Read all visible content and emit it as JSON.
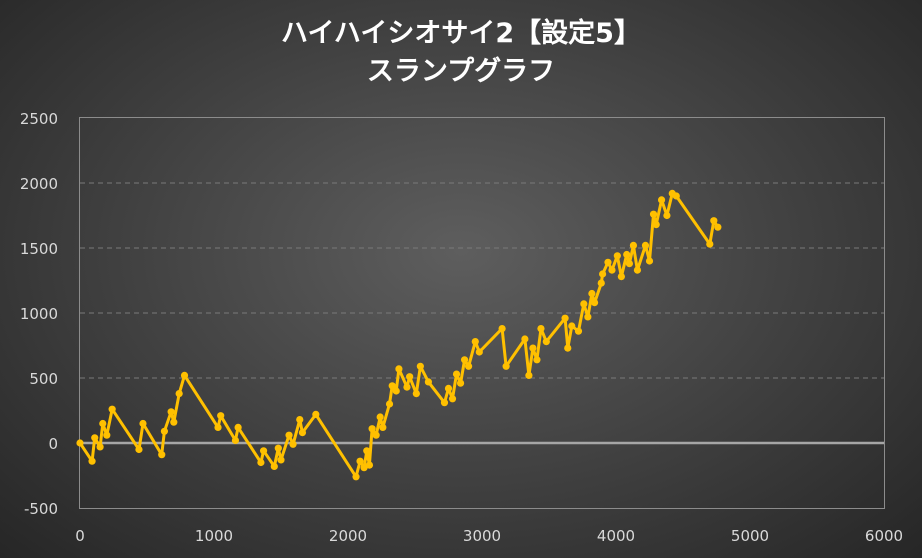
{
  "chart_data": {
    "type": "line",
    "title": "ハイハイシオサイ2【設定5】",
    "subtitle": "スランプグラフ",
    "xlim": [
      0,
      6000
    ],
    "ylim": [
      -500,
      2500
    ],
    "x_ticks": [
      "0",
      "1000",
      "2000",
      "3000",
      "4000",
      "5000",
      "6000"
    ],
    "y_ticks": [
      "2500",
      "2000",
      "1500",
      "1000",
      "500",
      "0",
      "-500"
    ],
    "grid": true,
    "legend": "none",
    "series": [
      {
        "color": "#ffc000",
        "x": [
          0,
          90,
          110,
          150,
          170,
          200,
          240,
          440,
          470,
          610,
          630,
          680,
          700,
          740,
          780,
          1030,
          1050,
          1160,
          1180,
          1350,
          1370,
          1450,
          1480,
          1500,
          1560,
          1590,
          1640,
          1660,
          1760,
          2060,
          2090,
          2120,
          2140,
          2160,
          2180,
          2210,
          2240,
          2260,
          2310,
          2330,
          2360,
          2380,
          2440,
          2460,
          2510,
          2540,
          2600,
          2720,
          2750,
          2780,
          2810,
          2840,
          2870,
          2900,
          2950,
          2980,
          3150,
          3180,
          3320,
          3350,
          3380,
          3410,
          3440,
          3480,
          3620,
          3640,
          3670,
          3720,
          3760,
          3790,
          3820,
          3840,
          3890,
          3900,
          3940,
          3970,
          4010,
          4040,
          4080,
          4100,
          4130,
          4160,
          4220,
          4250,
          4280,
          4300,
          4340,
          4380,
          4420,
          4450,
          4700,
          4730,
          4760
        ],
        "y": [
          0,
          -140,
          40,
          -30,
          150,
          60,
          260,
          -50,
          150,
          -90,
          90,
          240,
          160,
          380,
          520,
          120,
          210,
          20,
          120,
          -150,
          -60,
          -180,
          -40,
          -130,
          60,
          -10,
          180,
          80,
          220,
          -260,
          -140,
          -190,
          -60,
          -170,
          110,
          60,
          200,
          120,
          300,
          440,
          400,
          570,
          430,
          510,
          380,
          590,
          470,
          310,
          420,
          340,
          530,
          460,
          640,
          590,
          780,
          700,
          880,
          590,
          800,
          520,
          730,
          640,
          880,
          780,
          960,
          730,
          900,
          860,
          1070,
          970,
          1150,
          1080,
          1230,
          1300,
          1390,
          1330,
          1440,
          1280,
          1450,
          1380,
          1520,
          1330,
          1520,
          1400,
          1760,
          1680,
          1870,
          1750,
          1920,
          1900,
          1530,
          1710,
          1660
        ]
      }
    ]
  }
}
